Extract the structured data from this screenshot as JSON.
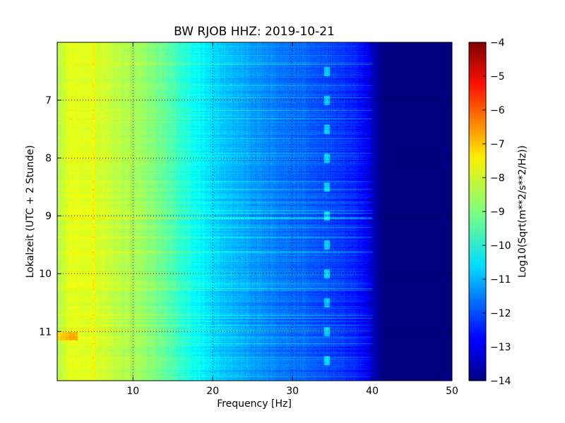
{
  "chart_data": {
    "type": "heatmap",
    "title": "BW RJOB HHZ: 2019-10-21",
    "xlabel": "Frequency [Hz]",
    "ylabel": "Lokalzeit (UTC + 2 Stunde)",
    "xlim": [
      0.5,
      50
    ],
    "ylim": [
      6.0,
      11.85
    ],
    "y_inverted": true,
    "x_ticks": [
      10,
      20,
      30,
      40,
      50
    ],
    "x_tick_labels": [
      "10",
      "20",
      "30",
      "40",
      "50"
    ],
    "y_ticks": [
      7,
      8,
      9,
      10,
      11
    ],
    "y_tick_labels": [
      "7",
      "8",
      "9",
      "10",
      "11"
    ],
    "grid": true,
    "colormap": "jet",
    "colorbar": {
      "label": "Log10(Sqrt(m**2/s**2/Hz))",
      "range": [
        -14,
        -4
      ],
      "ticks": [
        -4,
        -5,
        -6,
        -7,
        -8,
        -9,
        -10,
        -11,
        -12,
        -13,
        -14
      ],
      "tick_labels": [
        "−4",
        "−5",
        "−6",
        "−7",
        "−8",
        "−9",
        "−10",
        "−11",
        "−12",
        "−13",
        "−14"
      ]
    },
    "spectral_profile": {
      "frequency_hz": [
        0.5,
        2,
        5,
        8,
        10,
        12,
        14,
        16,
        18,
        20,
        22,
        25,
        28,
        30,
        33,
        36,
        38,
        39,
        40,
        41,
        42,
        45,
        50
      ],
      "log10_amplitude": [
        -8.5,
        -8.0,
        -8.1,
        -8.4,
        -8.6,
        -8.9,
        -9.3,
        -9.8,
        -10.2,
        -10.6,
        -10.9,
        -11.2,
        -11.5,
        -11.7,
        -11.9,
        -12.2,
        -12.5,
        -12.8,
        -13.3,
        -13.9,
        -14,
        -14,
        -14
      ]
    }
  }
}
